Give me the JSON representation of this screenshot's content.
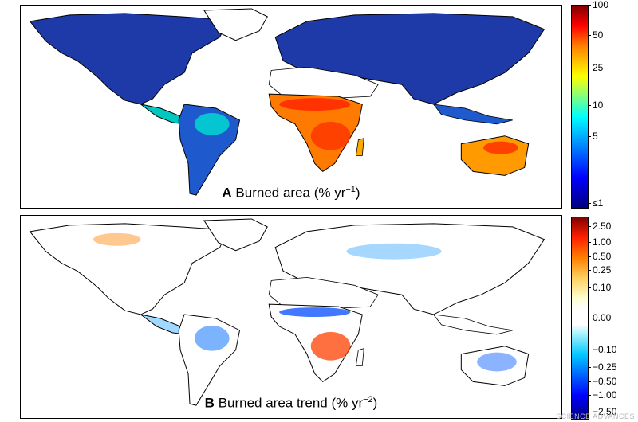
{
  "panels": {
    "a": {
      "letter": "A",
      "title": "Burned area (% yr",
      "exponent": "−1",
      "closing": ")"
    },
    "b": {
      "letter": "B",
      "title": "Burned area trend (% yr",
      "exponent": "−2",
      "closing": ")"
    }
  },
  "colorbar_a": {
    "ticks": [
      "100",
      "50",
      "25",
      "10",
      "5",
      "≤1"
    ]
  },
  "colorbar_b": {
    "ticks": [
      "2.50",
      "1.00",
      "0.50",
      "0.25",
      "0.10",
      "0.00",
      "−0.10",
      "−0.25",
      "−0.50",
      "−1.00",
      "−2.50"
    ]
  },
  "colors": {
    "land_background_a": "#1e3aa8",
    "hotspot": "#ff3300",
    "mid": "#00c8ff",
    "desert": "#ffffff"
  },
  "watermark": "SCIENCE ADVANCES"
}
